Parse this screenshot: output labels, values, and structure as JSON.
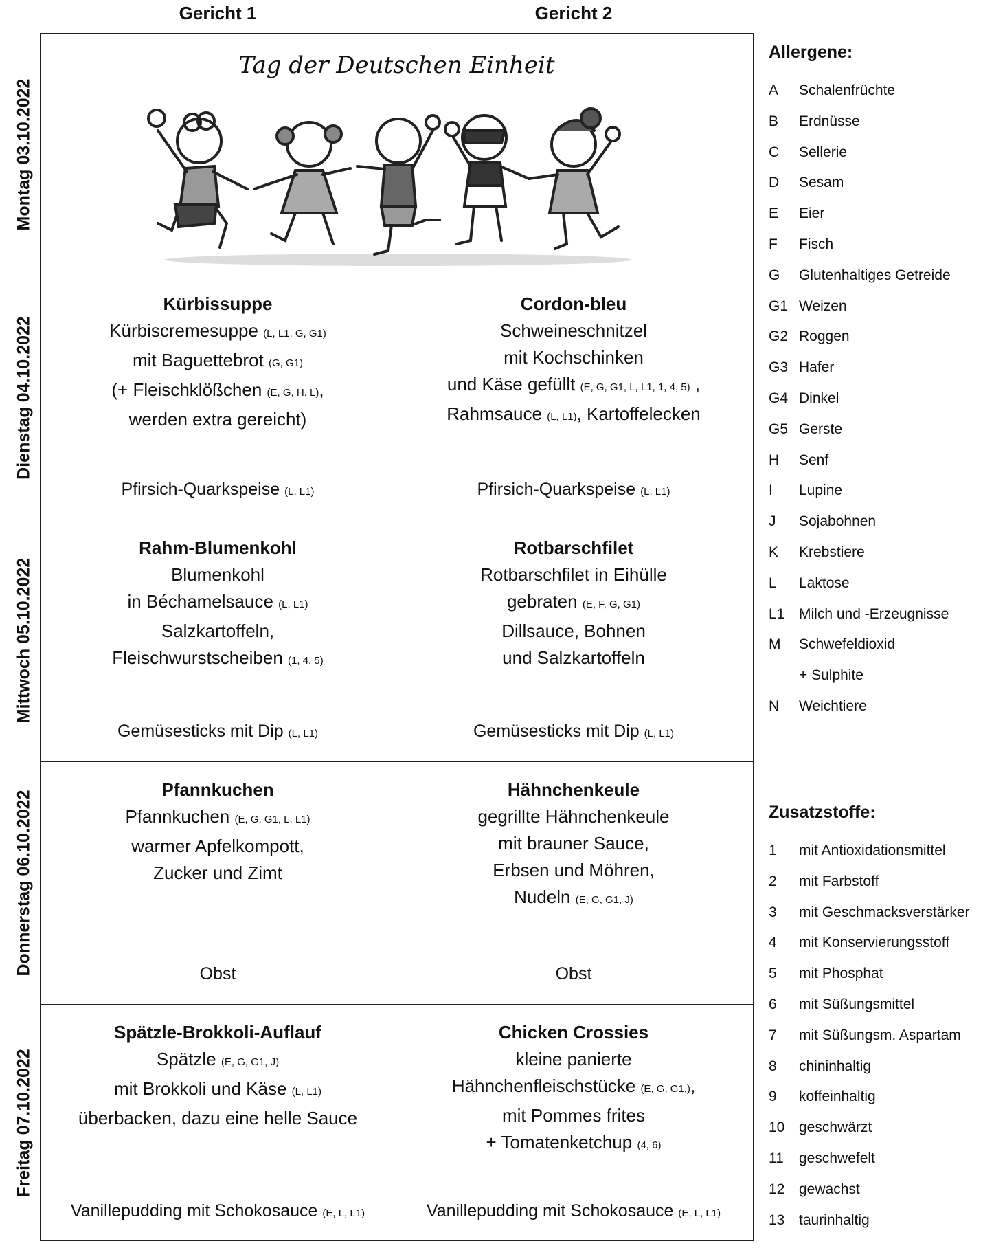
{
  "header": {
    "columns": [
      "Gericht 1",
      "Gericht 2"
    ]
  },
  "days": [
    {
      "label": "Montag 03.10.2022",
      "holiday": "Tag der Deutschen Einheit"
    },
    {
      "label": "Dienstag 04.10.2022",
      "dishes": [
        {
          "title": "Kürbissuppe",
          "lines": [
            {
              "text": "Kürbiscremesuppe",
              "allergens": "(L, L1, G, G1)"
            },
            {
              "text": "mit Baguettebrot",
              "allergens": "(G, G1)"
            },
            {
              "text": "(+ Fleischklößchen",
              "allergens": "(E, G, H, L)",
              "after": ","
            },
            {
              "text": "werden extra gereicht)"
            }
          ],
          "dessert": {
            "text": "Pfirsich-Quarkspeise",
            "allergens": "(L, L1)"
          }
        },
        {
          "title": "Cordon-bleu",
          "lines": [
            {
              "text": "Schweineschnitzel"
            },
            {
              "text": "mit Kochschinken"
            },
            {
              "text": "und Käse gefüllt",
              "allergens": "(E, G, G1, L, L1, 1, 4, 5)",
              "after": " ,"
            },
            {
              "text": "Rahmsauce",
              "allergens": "(L, L1)",
              "after": ", Kartoffelecken"
            }
          ],
          "dessert": {
            "text": "Pfirsich-Quarkspeise",
            "allergens": "(L, L1)"
          }
        }
      ]
    },
    {
      "label": "Mittwoch 05.10.2022",
      "dishes": [
        {
          "title": "Rahm-Blumenkohl",
          "lines": [
            {
              "text": "Blumenkohl"
            },
            {
              "text": "in Béchamelsauce",
              "allergens": "(L, L1)"
            },
            {
              "text": "Salzkartoffeln,"
            },
            {
              "text": "Fleischwurstscheiben",
              "allergens": "(1, 4, 5)"
            }
          ],
          "dessert": {
            "text": "Gemüsesticks mit Dip",
            "allergens": "(L, L1)"
          }
        },
        {
          "title": "Rotbarschfilet",
          "lines": [
            {
              "text": "Rotbarschfilet in Eihülle"
            },
            {
              "text": "gebraten",
              "allergens": "(E, F, G, G1)"
            },
            {
              "text": "Dillsauce, Bohnen"
            },
            {
              "text": "und Salzkartoffeln"
            }
          ],
          "dessert": {
            "text": "Gemüsesticks mit Dip",
            "allergens": "(L, L1)"
          }
        }
      ]
    },
    {
      "label": "Donnerstag 06.10.2022",
      "dishes": [
        {
          "title": "Pfannkuchen",
          "lines": [
            {
              "text": "Pfannkuchen",
              "allergens": "(E, G, G1, L, L1)"
            },
            {
              "text": "warmer Apfelkompott,"
            },
            {
              "text": "Zucker und Zimt"
            }
          ],
          "dessert": {
            "text": "Obst"
          }
        },
        {
          "title": "Hähnchenkeule",
          "lines": [
            {
              "text": "gegrillte Hähnchenkeule"
            },
            {
              "text": "mit brauner Sauce,"
            },
            {
              "text": "Erbsen und Möhren,"
            },
            {
              "text": "Nudeln",
              "allergens": "(E, G, G1, J)"
            }
          ],
          "dessert": {
            "text": "Obst"
          }
        }
      ]
    },
    {
      "label": "Freitag 07.10.2022",
      "dishes": [
        {
          "title": "Spätzle-Brokkoli-Auflauf",
          "lines": [
            {
              "text": "Spätzle",
              "allergens": "(E, G, G1, J)"
            },
            {
              "text": "mit Brokkoli und Käse",
              "allergens": "(L, L1)"
            },
            {
              "text": "überbacken, dazu eine helle Sauce"
            }
          ],
          "dessert": {
            "text": "Vanillepudding mit Schokosauce",
            "allergens": "(E, L, L1)"
          }
        },
        {
          "title": "Chicken Crossies",
          "lines": [
            {
              "text": "kleine panierte"
            },
            {
              "text": "Hähnchenfleischstücke",
              "allergens": "(E, G, G1,)",
              "after": ","
            },
            {
              "text": "mit Pommes frites"
            },
            {
              "text": "+ Tomatenketchup",
              "allergens": "(4, 6)"
            }
          ],
          "dessert": {
            "text": "Vanillepudding mit Schokosauce",
            "allergens": "(E, L, L1)"
          }
        }
      ]
    }
  ],
  "allergens": {
    "title": "Allergene:",
    "items": [
      {
        "code": "A",
        "label": "Schalenfrüchte"
      },
      {
        "code": "B",
        "label": "Erdnüsse"
      },
      {
        "code": "C",
        "label": "Sellerie"
      },
      {
        "code": "D",
        "label": "Sesam"
      },
      {
        "code": "E",
        "label": "Eier"
      },
      {
        "code": "F",
        "label": "Fisch"
      },
      {
        "code": "G",
        "label": "Glutenhaltiges Getreide"
      },
      {
        "code": "G1",
        "label": "Weizen"
      },
      {
        "code": "G2",
        "label": "Roggen"
      },
      {
        "code": "G3",
        "label": "Hafer"
      },
      {
        "code": "G4",
        "label": "Dinkel"
      },
      {
        "code": "G5",
        "label": "Gerste"
      },
      {
        "code": "H",
        "label": "Senf"
      },
      {
        "code": "I",
        "label": "Lupine"
      },
      {
        "code": "J",
        "label": "Sojabohnen"
      },
      {
        "code": "K",
        "label": "Krebstiere"
      },
      {
        "code": "L",
        "label": "Laktose"
      },
      {
        "code": "L1",
        "label": "Milch und -Erzeugnisse"
      },
      {
        "code": "M",
        "label": "Schwefeldioxid",
        "extra": "+ Sulphite"
      },
      {
        "code": "N",
        "label": "Weichtiere"
      }
    ]
  },
  "additives": {
    "title": "Zusatzstoffe:",
    "items": [
      {
        "code": "1",
        "label": "mit Antioxidationsmittel"
      },
      {
        "code": "2",
        "label": "mit Farbstoff"
      },
      {
        "code": "3",
        "label": "mit Geschmacksverstärker"
      },
      {
        "code": "4",
        "label": "mit Konservierungsstoff"
      },
      {
        "code": "5",
        "label": "mit Phosphat"
      },
      {
        "code": "6",
        "label": "mit Süßungsmittel"
      },
      {
        "code": "7",
        "label": "mit Süßungsm. Aspartam"
      },
      {
        "code": "8",
        "label": "chininhaltig"
      },
      {
        "code": "9",
        "label": "koffeinhaltig"
      },
      {
        "code": "10",
        "label": "geschwärzt"
      },
      {
        "code": "11",
        "label": "geschwefelt"
      },
      {
        "code": "12",
        "label": "gewachst"
      },
      {
        "code": "13",
        "label": "taurinhaltig"
      }
    ]
  }
}
